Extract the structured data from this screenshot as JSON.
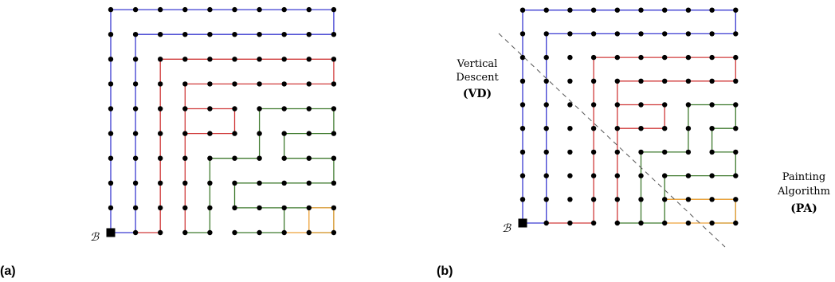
{
  "panels": [
    {
      "label": "(a)",
      "base_label": "ℬ",
      "grid_size": 10,
      "paths": [
        {
          "color": "#3b3bd1",
          "cells": [
            [
              1,
              0
            ],
            [
              0,
              0
            ],
            [
              0,
              9
            ],
            [
              9,
              9
            ],
            [
              9,
              8
            ],
            [
              1,
              8
            ],
            [
              1,
              0
            ]
          ]
        },
        {
          "color": "#d03a3a",
          "cells": [
            [
              1,
              0
            ],
            [
              2,
              0
            ],
            [
              2,
              7
            ],
            [
              9,
              7
            ],
            [
              9,
              6
            ],
            [
              3,
              6
            ],
            [
              3,
              0
            ]
          ]
        },
        {
          "color": "#d03a3a",
          "cells": [
            [
              3,
              5
            ],
            [
              5,
              5
            ],
            [
              5,
              4
            ],
            [
              4,
              4
            ],
            [
              3,
              4
            ]
          ]
        },
        {
          "color": "#3f7a2e",
          "cells": [
            [
              3,
              0
            ],
            [
              4,
              0
            ],
            [
              4,
              3
            ],
            [
              6,
              3
            ],
            [
              6,
              5
            ],
            [
              9,
              5
            ],
            [
              9,
              4
            ],
            [
              7,
              4
            ],
            [
              7,
              3
            ],
            [
              9,
              3
            ],
            [
              9,
              2
            ],
            [
              5,
              2
            ],
            [
              5,
              1
            ],
            [
              9,
              1
            ],
            [
              9,
              0
            ],
            [
              8,
              0
            ]
          ]
        },
        {
          "color": "#3f7a2e",
          "cells": [
            [
              5,
              0
            ],
            [
              7,
              0
            ],
            [
              7,
              1
            ]
          ]
        },
        {
          "color": "#eda23a",
          "cells": [
            [
              7,
              0
            ],
            [
              8,
              0
            ],
            [
              9,
              0
            ],
            [
              9,
              1
            ],
            [
              8,
              1
            ],
            [
              8,
              0
            ]
          ]
        }
      ]
    },
    {
      "label": "(b)",
      "base_label": "ℬ",
      "grid_size": 10,
      "paths": [
        {
          "color": "#3b3bd1",
          "cells": [
            [
              1,
              0
            ],
            [
              0,
              0
            ],
            [
              0,
              9
            ],
            [
              9,
              9
            ],
            [
              9,
              8
            ],
            [
              1,
              8
            ],
            [
              1,
              0
            ]
          ]
        },
        {
          "color": "#d03a3a",
          "cells": [
            [
              1,
              0
            ],
            [
              3,
              0
            ],
            [
              3,
              7
            ],
            [
              9,
              7
            ],
            [
              9,
              6
            ],
            [
              4,
              6
            ],
            [
              4,
              0
            ]
          ]
        },
        {
          "color": "#d03a3a",
          "cells": [
            [
              4,
              5
            ],
            [
              6,
              5
            ],
            [
              6,
              4
            ],
            [
              4,
              4
            ]
          ]
        },
        {
          "color": "#3f7a2e",
          "cells": [
            [
              4,
              0
            ],
            [
              5,
              0
            ],
            [
              5,
              3
            ],
            [
              7,
              3
            ],
            [
              7,
              5
            ],
            [
              9,
              5
            ],
            [
              9,
              4
            ],
            [
              8,
              4
            ],
            [
              8,
              3
            ],
            [
              9,
              3
            ],
            [
              9,
              2
            ],
            [
              6,
              2
            ],
            [
              6,
              1
            ],
            [
              9,
              1
            ],
            [
              9,
              0
            ],
            [
              8,
              0
            ]
          ]
        },
        {
          "color": "#3f7a2e",
          "cells": [
            [
              5,
              0
            ],
            [
              6,
              0
            ],
            [
              6,
              1
            ]
          ]
        },
        {
          "color": "#eda23a",
          "cells": [
            [
              6,
              0
            ],
            [
              9,
              0
            ],
            [
              9,
              1
            ],
            [
              6,
              1
            ]
          ]
        }
      ],
      "annotations": {
        "vd_line1": "Vertical",
        "vd_line2": "Descent",
        "vd_abbr": "(VD)",
        "pa_line1": "Painting",
        "pa_line2": "Algorithm",
        "pa_abbr": "(PA)"
      }
    }
  ],
  "colors": {
    "node": "#000000",
    "divider": "#555555"
  }
}
